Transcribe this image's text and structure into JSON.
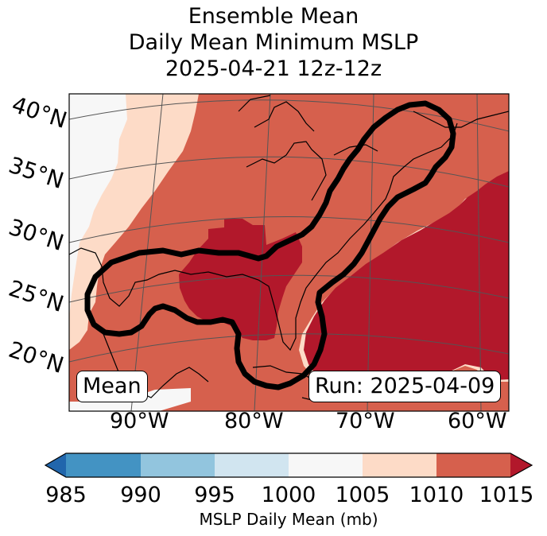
{
  "title": {
    "line1": "Ensemble Mean",
    "line2": "Daily Mean Minimum MSLP",
    "line3": "2025-04-21 12z-12z"
  },
  "map": {
    "lat_labels": [
      "40°N",
      "35°N",
      "30°N",
      "25°N",
      "20°N"
    ],
    "lon_labels": [
      "90°W",
      "80°W",
      "70°W",
      "60°W"
    ],
    "mean_badge": "Mean",
    "run_badge": "Run: 2025-04-09"
  },
  "colorbar": {
    "ticks": [
      "985",
      "990",
      "995",
      "1000",
      "1005",
      "1010",
      "1015"
    ],
    "label": "MSLP Daily Mean (mb)",
    "colors": [
      "#4393c3",
      "#92c5de",
      "#d1e5f0",
      "#f7f7f7",
      "#fddbc7",
      "#d6604d",
      "#b2182b",
      "#2166ac"
    ]
  }
}
